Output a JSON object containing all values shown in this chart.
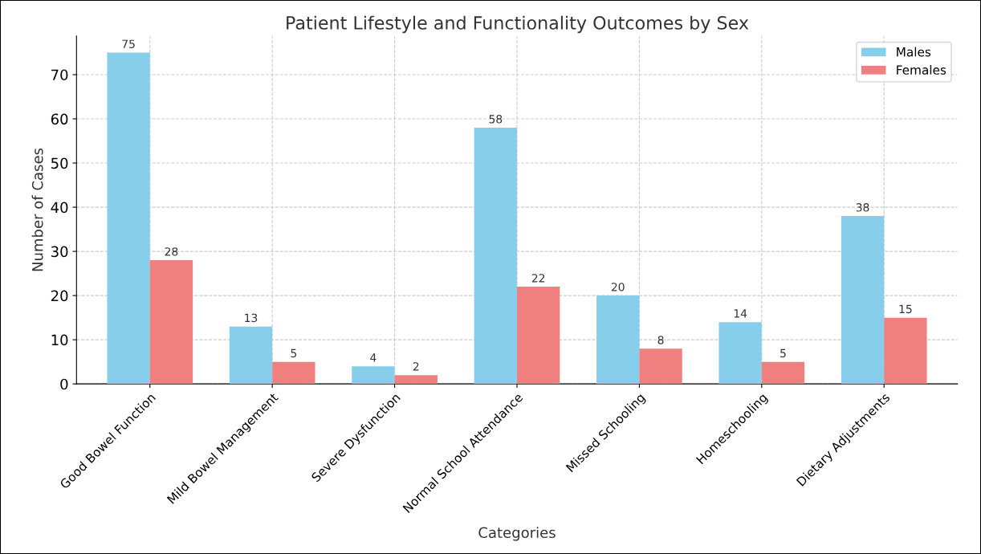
{
  "chart_data": {
    "type": "bar",
    "title": "Patient Lifestyle and Functionality Outcomes by Sex",
    "xlabel": "Categories",
    "ylabel": "Number of Cases",
    "categories": [
      "Good Bowel Function",
      "Mild Bowel Management",
      "Severe Dysfunction",
      "Normal School Attendance",
      "Missed Schooling",
      "Homeschooling",
      "Dietary Adjustments"
    ],
    "series": [
      {
        "name": "Males",
        "color": "#87ceeb",
        "values": [
          75,
          13,
          4,
          58,
          20,
          14,
          38
        ]
      },
      {
        "name": "Females",
        "color": "#f08080",
        "values": [
          28,
          5,
          2,
          22,
          8,
          5,
          15
        ]
      }
    ],
    "ylim": [
      0,
      78.75
    ],
    "yticks": [
      0,
      10,
      20,
      30,
      40,
      50,
      60,
      70
    ],
    "grid": true,
    "legend": "top right",
    "data_labels": true
  }
}
